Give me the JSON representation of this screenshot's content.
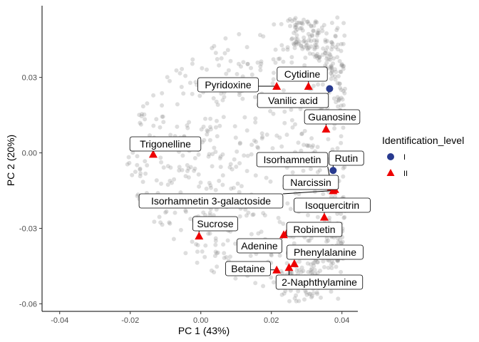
{
  "chart_data": {
    "type": "scatter",
    "title": "",
    "xlabel": "PC 1 (43%)",
    "ylabel": "PC 2 (20%)",
    "xlim": [
      -0.045,
      0.0445
    ],
    "ylim": [
      -0.063,
      0.0585
    ],
    "xticks": [
      -0.04,
      -0.02,
      0.0,
      0.02,
      0.04
    ],
    "xtick_labels": [
      "-0.04",
      "-0.02",
      "0.00",
      "0.02",
      "0.04"
    ],
    "yticks": [
      -0.06,
      -0.03,
      0.0,
      0.03
    ],
    "ytick_labels": [
      "-0.06",
      "-0.03",
      "0.00",
      "0.03"
    ],
    "grid": false,
    "legend": {
      "title": "Identification_level",
      "position": "right",
      "entries": [
        {
          "label": "I",
          "shape": "circle",
          "color": "#283a8f"
        },
        {
          "label": "II",
          "shape": "triangle",
          "color": "#ee0000"
        }
      ]
    },
    "background_points": {
      "description_color": "#888888",
      "count": 900,
      "x_range": [
        -0.042,
        0.041
      ],
      "y_range": [
        -0.059,
        0.055
      ]
    },
    "series": [
      {
        "name": "I",
        "marker": "circle",
        "color": "#283a8f",
        "points": [
          {
            "label": "Vanilic acid",
            "x": 0.0365,
            "y": 0.0255
          },
          {
            "label": "Rutin",
            "x": 0.0375,
            "y": -0.007
          }
        ]
      },
      {
        "name": "II",
        "marker": "triangle",
        "color": "#ee0000",
        "points": [
          {
            "label": "Pyridoxine",
            "x": 0.0215,
            "y": 0.0265
          },
          {
            "label": "Cytidine",
            "x": 0.0305,
            "y": 0.0265
          },
          {
            "label": "Guanosine",
            "x": 0.0355,
            "y": 0.0095
          },
          {
            "label": "Trigonelline",
            "x": -0.0135,
            "y": -0.0005
          },
          {
            "label": "Isorhamnetin",
            "x": 0.037,
            "y": -0.0135
          },
          {
            "label": "Narcissin",
            "x": 0.038,
            "y": -0.0145
          },
          {
            "label": "Isorhamnetin 3-galactoside",
            "x": 0.0375,
            "y": -0.015
          },
          {
            "label": "Isoquercitrin",
            "x": 0.035,
            "y": -0.0255
          },
          {
            "label": "Sucrose",
            "x": -0.0005,
            "y": -0.033
          },
          {
            "label": "Robinetin",
            "x": 0.0245,
            "y": -0.0315
          },
          {
            "label": "Adenine",
            "x": 0.0235,
            "y": -0.0325
          },
          {
            "label": "Phenylalanine",
            "x": 0.0265,
            "y": -0.044
          },
          {
            "label": "Betaine",
            "x": 0.0215,
            "y": -0.0465
          },
          {
            "label": "2-Naphthylamine",
            "x": 0.025,
            "y": -0.0455
          }
        ]
      }
    ]
  }
}
